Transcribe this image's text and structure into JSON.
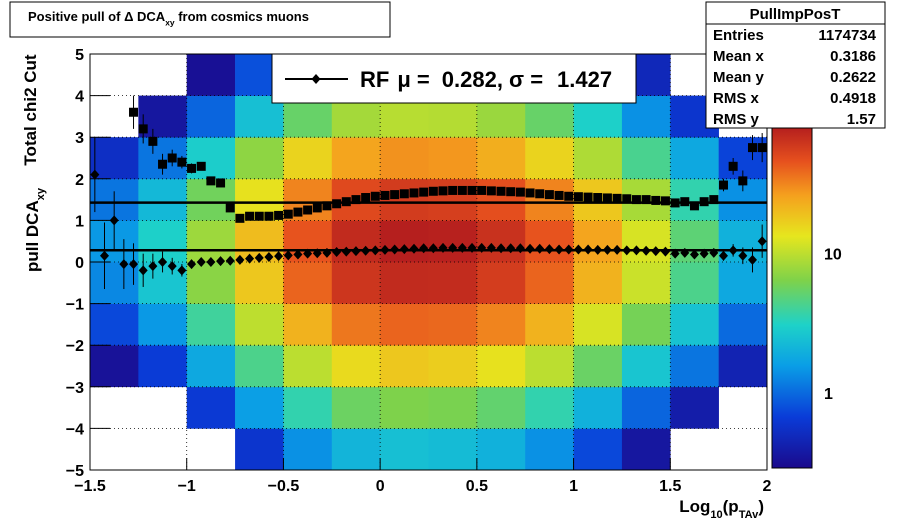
{
  "chart_data": {
    "type": "heatmap",
    "title_parts": [
      "Positive pull of Δ DCA",
      "xy",
      " from cosmics muons"
    ],
    "ylabel_parts": [
      "pull DCA",
      "xy"
    ],
    "ylabel_note": "Total chi2 Cut",
    "xlabel_parts": [
      "Log",
      "10",
      "(p",
      "TAv",
      ")"
    ],
    "xlim": [
      -1.5,
      2
    ],
    "ylim": [
      -5,
      5
    ],
    "xticks": [
      {
        "value": -1.5,
        "label": "−1.5"
      },
      {
        "value": -1,
        "label": "−1"
      },
      {
        "value": -0.5,
        "label": "−0.5"
      },
      0,
      0.5,
      1,
      1.5,
      2
    ],
    "yticks": [
      {
        "value": -5,
        "label": "−5"
      },
      {
        "value": -4,
        "label": "−4"
      },
      {
        "value": -3,
        "label": "−3"
      },
      {
        "value": -2,
        "label": "−2"
      },
      {
        "value": -1,
        "label": "−1"
      },
      0,
      1,
      2,
      3,
      4,
      5
    ],
    "grid": true,
    "zlim": [
      0.29,
      81
    ],
    "zticks": [
      1,
      10
    ],
    "zlog": true,
    "xbins": [
      -1.5,
      -1.25,
      -1,
      -0.75,
      -0.5,
      -0.25,
      0,
      0.25,
      0.5,
      0.75,
      1,
      1.25,
      1.5,
      1.75,
      2
    ],
    "ybins": [
      -5,
      -4,
      -3,
      -2,
      -1,
      0,
      1,
      2,
      3,
      4,
      5
    ],
    "z": [
      [
        0.05,
        0.09,
        0.24,
        0.6,
        1.4,
        2.1,
        2.4,
        2.3,
        2,
        1.4,
        0.75,
        0.36,
        0.15,
        0.06
      ],
      [
        0.12,
        0.24,
        0.64,
        1.6,
        3.6,
        5.6,
        6.4,
        6.2,
        5.2,
        3.6,
        2,
        0.96,
        0.4,
        0.16
      ],
      [
        0.33,
        0.66,
        1.8,
        4.4,
        9.9,
        15,
        18,
        17,
        14,
        9.9,
        5.5,
        2.6,
        1.1,
        0.44
      ],
      [
        0.75,
        1.5,
        4,
        10,
        22,
        35,
        40,
        39,
        32,
        22,
        12,
        6,
        2.5,
        1
      ],
      [
        1.3,
        2.6,
        7,
        18,
        40,
        62,
        70,
        69,
        57,
        40,
        22,
        11,
        4.4,
        1.8
      ],
      [
        1.5,
        3,
        8,
        20,
        45,
        70,
        80,
        78,
        65,
        45,
        25,
        12,
        5,
        2
      ],
      [
        1.1,
        2.2,
        5.8,
        14,
        32,
        50,
        58,
        56,
        47,
        32,
        18,
        8.6,
        3.6,
        1.4
      ],
      [
        0.54,
        1.1,
        2.9,
        7.2,
        16,
        25,
        29,
        28,
        23,
        16,
        9,
        4.3,
        1.8,
        0.72
      ],
      [
        0.18,
        0.36,
        0.96,
        2.4,
        5.4,
        8.4,
        9.6,
        9.4,
        7.8,
        5.4,
        3,
        1.4,
        0.6,
        0.24
      ],
      [
        0.06,
        0.12,
        0.32,
        0.8,
        1.8,
        2.8,
        3.2,
        3.1,
        2.6,
        1.8,
        1,
        0.48,
        0.2,
        0.08
      ]
    ],
    "x": [
      -1.475,
      -1.425,
      -1.375,
      -1.325,
      -1.275,
      -1.225,
      -1.175,
      -1.125,
      -1.075,
      -1.025,
      -0.975,
      -0.925,
      -0.875,
      -0.825,
      -0.775,
      -0.725,
      -0.675,
      -0.625,
      -0.575,
      -0.525,
      -0.475,
      -0.425,
      -0.375,
      -0.325,
      -0.275,
      -0.225,
      -0.175,
      -0.125,
      -0.075,
      -0.025,
      0.025,
      0.075,
      0.125,
      0.175,
      0.225,
      0.275,
      0.325,
      0.375,
      0.425,
      0.475,
      0.525,
      0.575,
      0.625,
      0.675,
      0.725,
      0.775,
      0.825,
      0.875,
      0.925,
      0.975,
      1.025,
      1.075,
      1.125,
      1.175,
      1.225,
      1.275,
      1.325,
      1.375,
      1.425,
      1.475,
      1.525,
      1.575,
      1.625,
      1.675,
      1.725,
      1.775,
      1.825,
      1.875,
      1.925,
      1.975
    ],
    "series": [
      {
        "marker": "square",
        "color": "#000000",
        "values": [
          null,
          null,
          null,
          null,
          3.6,
          3.2,
          2.9,
          2.35,
          2.5,
          2.4,
          2.25,
          2.3,
          1.95,
          1.9,
          1.3,
          1.05,
          1.1,
          1.1,
          1.1,
          1.12,
          1.15,
          1.2,
          1.25,
          1.3,
          1.35,
          1.4,
          1.45,
          1.5,
          1.55,
          1.58,
          1.6,
          1.62,
          1.64,
          1.66,
          1.68,
          1.7,
          1.71,
          1.72,
          1.72,
          1.72,
          1.72,
          1.71,
          1.7,
          1.69,
          1.68,
          1.66,
          1.64,
          1.62,
          1.6,
          1.58,
          1.57,
          1.56,
          1.55,
          1.54,
          1.53,
          1.52,
          1.5,
          1.5,
          1.48,
          1.47,
          1.42,
          1.45,
          1.35,
          1.45,
          1.5,
          1.85,
          2.3,
          1.95,
          2.75,
          2.75
        ],
        "errors": [
          null,
          null,
          null,
          null,
          0.4,
          0.35,
          0.3,
          0.25,
          0.2,
          0.15,
          0.12,
          0.1,
          0.08,
          0.06,
          null,
          null,
          null,
          null,
          null,
          null,
          null,
          null,
          null,
          null,
          null,
          null,
          null,
          null,
          null,
          null,
          null,
          null,
          null,
          null,
          null,
          null,
          null,
          null,
          null,
          null,
          null,
          null,
          null,
          null,
          null,
          null,
          null,
          null,
          null,
          null,
          null,
          null,
          null,
          null,
          null,
          null,
          null,
          null,
          null,
          null,
          null,
          null,
          null,
          null,
          0.1,
          0.15,
          0.2,
          0.25,
          0.3,
          0.35
        ]
      },
      {
        "marker": "diamond",
        "color": "#000000",
        "values": [
          2.1,
          0.15,
          1.0,
          -0.05,
          -0.05,
          -0.2,
          -0.1,
          0.0,
          -0.1,
          -0.2,
          -0.05,
          0.0,
          0.0,
          0.02,
          0.03,
          0.05,
          0.08,
          0.1,
          0.12,
          0.14,
          0.16,
          0.18,
          0.2,
          0.21,
          0.22,
          0.24,
          0.25,
          0.26,
          0.27,
          0.28,
          0.29,
          0.3,
          0.31,
          0.32,
          0.33,
          0.33,
          0.34,
          0.34,
          0.34,
          0.34,
          0.34,
          0.34,
          0.33,
          0.33,
          0.33,
          0.32,
          0.32,
          0.31,
          0.3,
          0.3,
          0.3,
          0.3,
          0.29,
          0.29,
          0.29,
          0.28,
          0.28,
          0.27,
          0.26,
          0.25,
          0.2,
          0.22,
          0.18,
          0.2,
          0.22,
          0.15,
          0.28,
          0.15,
          0.05,
          0.5
        ],
        "errors": [
          0.9,
          0.8,
          0.7,
          0.6,
          0.5,
          0.4,
          0.3,
          0.25,
          0.2,
          0.15,
          0.1,
          0.08,
          0.06,
          0.05,
          0.04,
          0.03,
          null,
          null,
          null,
          null,
          null,
          null,
          null,
          null,
          null,
          null,
          null,
          null,
          null,
          null,
          null,
          null,
          null,
          null,
          null,
          null,
          null,
          null,
          null,
          null,
          null,
          null,
          null,
          null,
          null,
          null,
          null,
          null,
          null,
          null,
          null,
          null,
          null,
          null,
          null,
          null,
          null,
          null,
          null,
          null,
          0.05,
          0.06,
          0.07,
          0.08,
          0.1,
          0.12,
          0.15,
          0.2,
          0.3,
          0.4
        ]
      }
    ],
    "fit": {
      "name": "RF",
      "mu_label": "μ =",
      "mu": 0.282,
      "sigma_label": ", σ =",
      "sigma": 1.427
    },
    "stats": {
      "title": "PullImpPosT",
      "rows": [
        [
          "Entries",
          1174734
        ],
        [
          "Mean x",
          0.3186
        ],
        [
          "Mean y",
          0.2622
        ],
        [
          "RMS x",
          0.4918
        ],
        [
          "RMS y",
          1.57
        ]
      ]
    }
  }
}
